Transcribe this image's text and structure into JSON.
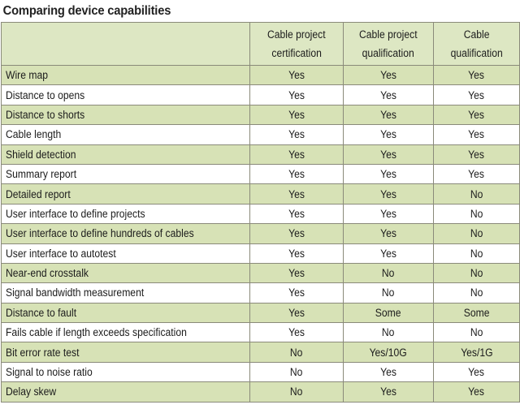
{
  "title": "Comparing device capabilities",
  "columns": [
    "",
    "Cable project certification",
    "Cable project qualification",
    "Cable qualification"
  ],
  "column_lines": [
    [
      "Cable project",
      "certification"
    ],
    [
      "Cable project",
      "qualification"
    ],
    [
      "Cable",
      "qualification"
    ]
  ],
  "rows": [
    {
      "label": "Wire map",
      "values": [
        "Yes",
        "Yes",
        "Yes"
      ]
    },
    {
      "label": "Distance to opens",
      "values": [
        "Yes",
        "Yes",
        "Yes"
      ]
    },
    {
      "label": "Distance to shorts",
      "values": [
        "Yes",
        "Yes",
        "Yes"
      ]
    },
    {
      "label": "Cable length",
      "values": [
        "Yes",
        "Yes",
        "Yes"
      ]
    },
    {
      "label": "Shield detection",
      "values": [
        "Yes",
        "Yes",
        "Yes"
      ]
    },
    {
      "label": "Summary report",
      "values": [
        "Yes",
        "Yes",
        "Yes"
      ]
    },
    {
      "label": "Detailed report",
      "values": [
        "Yes",
        "Yes",
        "No"
      ]
    },
    {
      "label": "User interface to define projects",
      "values": [
        "Yes",
        "Yes",
        "No"
      ]
    },
    {
      "label": "User interface to define hundreds of cables",
      "values": [
        "Yes",
        "Yes",
        "No"
      ]
    },
    {
      "label": "User interface to autotest",
      "values": [
        "Yes",
        "Yes",
        "No"
      ]
    },
    {
      "label": "Near-end crosstalk",
      "values": [
        "Yes",
        "No",
        "No"
      ]
    },
    {
      "label": "Signal bandwidth measurement",
      "values": [
        "Yes",
        "No",
        "No"
      ]
    },
    {
      "label": "Distance to fault",
      "values": [
        "Yes",
        "Some",
        "Some"
      ]
    },
    {
      "label": "Fails cable if length exceeds specification",
      "values": [
        "Yes",
        "No",
        "No"
      ]
    },
    {
      "label": "Bit error rate test",
      "values": [
        "No",
        "Yes/10G",
        "Yes/1G"
      ]
    },
    {
      "label": "Signal to noise ratio",
      "values": [
        "No",
        "Yes",
        "Yes"
      ]
    },
    {
      "label": "Delay skew",
      "values": [
        "No",
        "Yes",
        "Yes"
      ]
    }
  ],
  "colors": {
    "band": "#d7e2b6",
    "header": "#dde7c3",
    "border": "#8a8a7a"
  }
}
